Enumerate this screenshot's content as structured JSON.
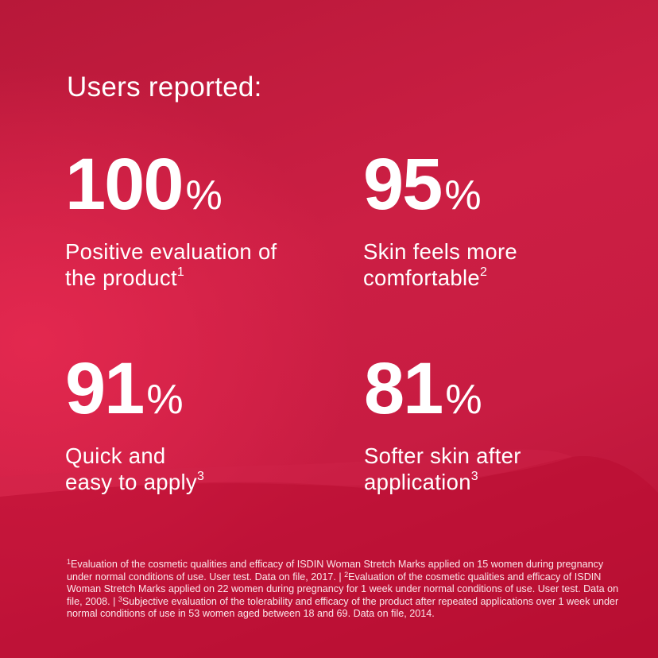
{
  "colors": {
    "background": "#c81c42",
    "highlight": "#e3284f",
    "text": "#ffffff"
  },
  "headline": "Users reported:",
  "stats": [
    {
      "value": "100",
      "unit": "%",
      "label": "Positive evaluation of the product",
      "note": "1"
    },
    {
      "value": "95",
      "unit": "%",
      "label": "Skin feels more comfortable",
      "note": "2"
    },
    {
      "value": "91",
      "unit": "%",
      "label": "Quick and easy to apply",
      "note": "3"
    },
    {
      "value": "81",
      "unit": "%",
      "label": "Softer skin after application",
      "note": "3"
    }
  ],
  "footnotes": [
    {
      "mark": "1",
      "text": "Evaluation of the cosmetic qualities and efficacy of ISDIN Woman Stretch Marks applied on 15 women during pregnancy under normal conditions of use. User test. Data on file, 2017. | "
    },
    {
      "mark": "2",
      "text": "Evaluation of the cosmetic qualities and efficacy of ISDIN Woman Stretch Marks applied on 22 women during pregnancy for 1 week under normal conditions of use. User test. Data on file, 2008. | "
    },
    {
      "mark": "3",
      "text": "Subjective evaluation of the tolerability and efficacy of the product after repeated applications over 1 week under normal conditions of use in 53 women aged between 18 and 69. Data on file, 2014."
    }
  ]
}
